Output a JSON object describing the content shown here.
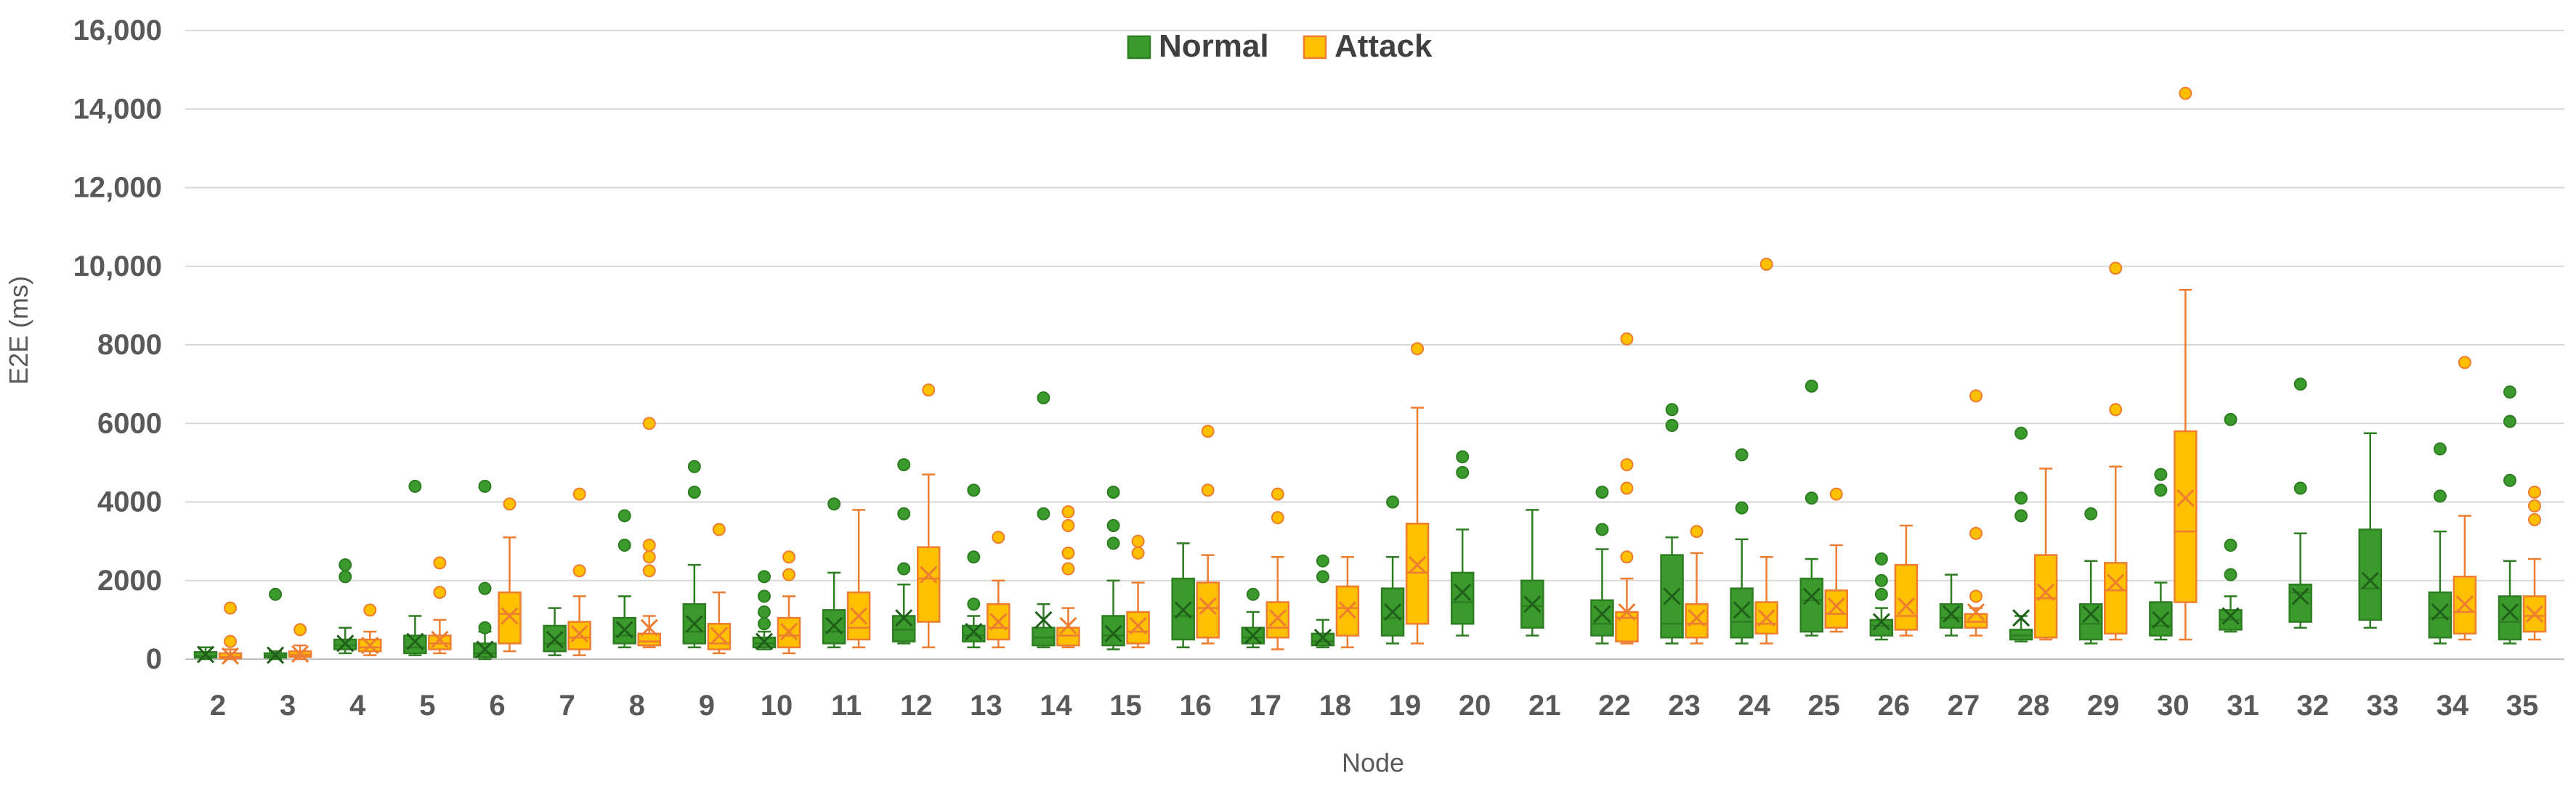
{
  "chart_data": {
    "type": "box",
    "title": "",
    "xlabel": "Node",
    "ylabel": "E2E (ms)",
    "ylim": [
      0,
      16000
    ],
    "yticks": [
      0,
      2000,
      4000,
      6000,
      8000,
      10000,
      12000,
      14000,
      16000
    ],
    "ytick_labels": [
      "0",
      "2000",
      "4000",
      "6000",
      "8000",
      "10,000",
      "12,000",
      "14,000",
      "16,000"
    ],
    "categories": [
      "2",
      "3",
      "4",
      "5",
      "6",
      "7",
      "8",
      "9",
      "10",
      "11",
      "12",
      "13",
      "14",
      "15",
      "16",
      "17",
      "18",
      "19",
      "20",
      "21",
      "22",
      "23",
      "24",
      "25",
      "26",
      "27",
      "28",
      "29",
      "30",
      "31",
      "32",
      "33",
      "34",
      "35"
    ],
    "grid": true,
    "legend_position": "top-center",
    "series": [
      {
        "name": "Normal",
        "color": "#3a9b2c",
        "edge_color": "#2e7d22",
        "boxes": [
          {
            "node": "2",
            "min": 0,
            "q1": 40,
            "median": 80,
            "q3": 180,
            "max": 300,
            "mean": 120,
            "outliers": []
          },
          {
            "node": "3",
            "min": 0,
            "q1": 40,
            "median": 90,
            "q3": 150,
            "max": 200,
            "mean": 100,
            "outliers": [
              1650
            ]
          },
          {
            "node": "4",
            "min": 150,
            "q1": 250,
            "median": 350,
            "q3": 500,
            "max": 800,
            "mean": 400,
            "outliers": [
              2100,
              2400
            ]
          },
          {
            "node": "5",
            "min": 100,
            "q1": 150,
            "median": 300,
            "q3": 600,
            "max": 1100,
            "mean": 450,
            "outliers": [
              4400
            ]
          },
          {
            "node": "6",
            "min": 0,
            "q1": 50,
            "median": 150,
            "q3": 400,
            "max": 700,
            "mean": 250,
            "outliers": [
              800,
              1800,
              4400
            ]
          },
          {
            "node": "7",
            "min": 100,
            "q1": 200,
            "median": 400,
            "q3": 850,
            "max": 1300,
            "mean": 500,
            "outliers": []
          },
          {
            "node": "8",
            "min": 300,
            "q1": 400,
            "median": 600,
            "q3": 1050,
            "max": 1600,
            "mean": 750,
            "outliers": [
              2900,
              3650
            ]
          },
          {
            "node": "9",
            "min": 300,
            "q1": 400,
            "median": 700,
            "q3": 1400,
            "max": 2400,
            "mean": 900,
            "outliers": [
              4250,
              4900
            ]
          },
          {
            "node": "10",
            "min": 250,
            "q1": 300,
            "median": 400,
            "q3": 550,
            "max": 700,
            "mean": 450,
            "outliers": [
              900,
              1200,
              1600,
              2100
            ]
          },
          {
            "node": "11",
            "min": 300,
            "q1": 400,
            "median": 700,
            "q3": 1250,
            "max": 2200,
            "mean": 850,
            "outliers": [
              3950
            ]
          },
          {
            "node": "12",
            "min": 400,
            "q1": 450,
            "median": 750,
            "q3": 1100,
            "max": 1900,
            "mean": 1050,
            "outliers": [
              2300,
              3700,
              4950
            ]
          },
          {
            "node": "13",
            "min": 300,
            "q1": 450,
            "median": 600,
            "q3": 850,
            "max": 1100,
            "mean": 700,
            "outliers": [
              1400,
              2600,
              4300
            ]
          },
          {
            "node": "14",
            "min": 300,
            "q1": 350,
            "median": 550,
            "q3": 800,
            "max": 1400,
            "mean": 1000,
            "outliers": [
              3700,
              6650
            ]
          },
          {
            "node": "15",
            "min": 250,
            "q1": 350,
            "median": 600,
            "q3": 1100,
            "max": 2000,
            "mean": 650,
            "outliers": [
              2950,
              3400,
              4250
            ]
          },
          {
            "node": "16",
            "min": 300,
            "q1": 500,
            "median": 1100,
            "q3": 2050,
            "max": 2950,
            "mean": 1250,
            "outliers": []
          },
          {
            "node": "17",
            "min": 300,
            "q1": 400,
            "median": 550,
            "q3": 800,
            "max": 1200,
            "mean": 600,
            "outliers": [
              1650
            ]
          },
          {
            "node": "18",
            "min": 300,
            "q1": 350,
            "median": 450,
            "q3": 650,
            "max": 1000,
            "mean": 550,
            "outliers": [
              2100,
              2500
            ]
          },
          {
            "node": "19",
            "min": 400,
            "q1": 600,
            "median": 1050,
            "q3": 1800,
            "max": 2600,
            "mean": 1200,
            "outliers": [
              4000
            ]
          },
          {
            "node": "20",
            "min": 600,
            "q1": 900,
            "median": 1450,
            "q3": 2200,
            "max": 3300,
            "mean": 1700,
            "outliers": [
              4750,
              5150
            ]
          },
          {
            "node": "21",
            "min": 600,
            "q1": 800,
            "median": 1350,
            "q3": 2000,
            "max": 3800,
            "mean": 1400,
            "outliers": []
          },
          {
            "node": "22",
            "min": 400,
            "q1": 600,
            "median": 900,
            "q3": 1500,
            "max": 2800,
            "mean": 1150,
            "outliers": [
              3300,
              4250
            ]
          },
          {
            "node": "23",
            "min": 400,
            "q1": 550,
            "median": 900,
            "q3": 2650,
            "max": 3100,
            "mean": 1600,
            "outliers": [
              5950,
              6350
            ]
          },
          {
            "node": "24",
            "min": 400,
            "q1": 550,
            "median": 950,
            "q3": 1800,
            "max": 3050,
            "mean": 1250,
            "outliers": [
              3850,
              5200
            ]
          },
          {
            "node": "25",
            "min": 600,
            "q1": 700,
            "median": 1500,
            "q3": 2050,
            "max": 2550,
            "mean": 1600,
            "outliers": [
              4100,
              6950
            ]
          },
          {
            "node": "26",
            "min": 500,
            "q1": 600,
            "median": 850,
            "q3": 1000,
            "max": 1300,
            "mean": 950,
            "outliers": [
              1650,
              2000,
              2550
            ]
          },
          {
            "node": "27",
            "min": 600,
            "q1": 800,
            "median": 1050,
            "q3": 1400,
            "max": 2150,
            "mean": 1150,
            "outliers": []
          },
          {
            "node": "28",
            "min": 450,
            "q1": 500,
            "median": 600,
            "q3": 750,
            "max": 1100,
            "mean": 1050,
            "outliers": [
              3650,
              4100,
              5750
            ]
          },
          {
            "node": "29",
            "min": 400,
            "q1": 500,
            "median": 900,
            "q3": 1400,
            "max": 2500,
            "mean": 1150,
            "outliers": [
              3700
            ]
          },
          {
            "node": "30",
            "min": 500,
            "q1": 600,
            "median": 850,
            "q3": 1450,
            "max": 1950,
            "mean": 1000,
            "outliers": [
              4300,
              4700
            ]
          },
          {
            "node": "31",
            "min": 700,
            "q1": 750,
            "median": 1000,
            "q3": 1250,
            "max": 1600,
            "mean": 1100,
            "outliers": [
              2150,
              2900,
              6100
            ]
          },
          {
            "node": "32",
            "min": 800,
            "q1": 950,
            "median": 1700,
            "q3": 1900,
            "max": 3200,
            "mean": 1600,
            "outliers": [
              4350,
              7000
            ]
          },
          {
            "node": "33",
            "min": 800,
            "q1": 1000,
            "median": 1800,
            "q3": 3300,
            "max": 5750,
            "mean": 2000,
            "outliers": []
          },
          {
            "node": "34",
            "min": 400,
            "q1": 550,
            "median": 1050,
            "q3": 1700,
            "max": 3250,
            "mean": 1200,
            "outliers": [
              4150,
              5350
            ]
          },
          {
            "node": "35",
            "min": 400,
            "q1": 500,
            "median": 950,
            "q3": 1600,
            "max": 2500,
            "mean": 1200,
            "outliers": [
              4550,
              6050,
              6800
            ]
          }
        ]
      },
      {
        "name": "Attack",
        "color": "#ffc000",
        "edge_color": "#ed7d31",
        "boxes": [
          {
            "node": "2",
            "min": 0,
            "q1": 20,
            "median": 60,
            "q3": 150,
            "max": 250,
            "mean": 80,
            "outliers": [
              450,
              1300
            ]
          },
          {
            "node": "3",
            "min": 0,
            "q1": 60,
            "median": 110,
            "q3": 200,
            "max": 350,
            "mean": 130,
            "outliers": [
              750
            ]
          },
          {
            "node": "4",
            "min": 100,
            "q1": 200,
            "median": 300,
            "q3": 500,
            "max": 700,
            "mean": 350,
            "outliers": [
              1250
            ]
          },
          {
            "node": "5",
            "min": 150,
            "q1": 250,
            "median": 400,
            "q3": 600,
            "max": 1000,
            "mean": 500,
            "outliers": [
              1700,
              2450
            ]
          },
          {
            "node": "6",
            "min": 200,
            "q1": 400,
            "median": 1150,
            "q3": 1700,
            "max": 3100,
            "mean": 1100,
            "outliers": [
              3950
            ]
          },
          {
            "node": "7",
            "min": 100,
            "q1": 250,
            "median": 550,
            "q3": 950,
            "max": 1600,
            "mean": 650,
            "outliers": [
              2250,
              4200
            ]
          },
          {
            "node": "8",
            "min": 300,
            "q1": 350,
            "median": 450,
            "q3": 650,
            "max": 1100,
            "mean": 800,
            "outliers": [
              2250,
              2600,
              2900,
              6000
            ]
          },
          {
            "node": "9",
            "min": 150,
            "q1": 250,
            "median": 400,
            "q3": 900,
            "max": 1700,
            "mean": 600,
            "outliers": [
              3300
            ]
          },
          {
            "node": "10",
            "min": 150,
            "q1": 300,
            "median": 600,
            "q3": 1050,
            "max": 1600,
            "mean": 700,
            "outliers": [
              2150,
              2600
            ]
          },
          {
            "node": "11",
            "min": 300,
            "q1": 500,
            "median": 800,
            "q3": 1700,
            "max": 3800,
            "mean": 1100,
            "outliers": []
          },
          {
            "node": "12",
            "min": 300,
            "q1": 950,
            "median": 2050,
            "q3": 2850,
            "max": 4700,
            "mean": 2150,
            "outliers": [
              6850
            ]
          },
          {
            "node": "13",
            "min": 300,
            "q1": 500,
            "median": 800,
            "q3": 1400,
            "max": 2000,
            "mean": 950,
            "outliers": [
              3100
            ]
          },
          {
            "node": "14",
            "min": 300,
            "q1": 350,
            "median": 600,
            "q3": 800,
            "max": 1300,
            "mean": 850,
            "outliers": [
              2300,
              2700,
              3400,
              3750
            ]
          },
          {
            "node": "15",
            "min": 300,
            "q1": 400,
            "median": 700,
            "q3": 1200,
            "max": 1950,
            "mean": 850,
            "outliers": [
              2700,
              3000
            ]
          },
          {
            "node": "16",
            "min": 400,
            "q1": 550,
            "median": 1300,
            "q3": 1950,
            "max": 2650,
            "mean": 1350,
            "outliers": [
              4300,
              5800
            ]
          },
          {
            "node": "17",
            "min": 250,
            "q1": 550,
            "median": 800,
            "q3": 1450,
            "max": 2600,
            "mean": 1050,
            "outliers": [
              3600,
              4200
            ]
          },
          {
            "node": "18",
            "min": 300,
            "q1": 600,
            "median": 1300,
            "q3": 1850,
            "max": 2600,
            "mean": 1250,
            "outliers": []
          },
          {
            "node": "19",
            "min": 400,
            "q1": 900,
            "median": 2200,
            "q3": 3450,
            "max": 6400,
            "mean": 2400,
            "outliers": [
              7900
            ]
          },
          {
            "node": "22",
            "min": 400,
            "q1": 450,
            "median": 1050,
            "q3": 1200,
            "max": 2050,
            "mean": 1200,
            "outliers": [
              2600,
              4350,
              4950,
              8150
            ]
          },
          {
            "node": "23",
            "min": 400,
            "q1": 550,
            "median": 900,
            "q3": 1400,
            "max": 2700,
            "mean": 1050,
            "outliers": [
              3250
            ]
          },
          {
            "node": "24",
            "min": 400,
            "q1": 650,
            "median": 900,
            "q3": 1450,
            "max": 2600,
            "mean": 1050,
            "outliers": [
              10050
            ]
          },
          {
            "node": "25",
            "min": 700,
            "q1": 800,
            "median": 1150,
            "q3": 1750,
            "max": 2900,
            "mean": 1350,
            "outliers": [
              4200
            ]
          },
          {
            "node": "26",
            "min": 600,
            "q1": 750,
            "median": 1100,
            "q3": 2400,
            "max": 3400,
            "mean": 1350,
            "outliers": []
          },
          {
            "node": "27",
            "min": 600,
            "q1": 800,
            "median": 950,
            "q3": 1150,
            "max": 1300,
            "mean": 1200,
            "outliers": [
              1600,
              3200,
              6700
            ]
          },
          {
            "node": "28",
            "min": 500,
            "q1": 550,
            "median": 1550,
            "q3": 2650,
            "max": 4850,
            "mean": 1700,
            "outliers": []
          },
          {
            "node": "29",
            "min": 500,
            "q1": 650,
            "median": 1750,
            "q3": 2450,
            "max": 4900,
            "mean": 1950,
            "outliers": [
              6350,
              9950
            ]
          },
          {
            "node": "30",
            "min": 500,
            "q1": 1450,
            "median": 3250,
            "q3": 5800,
            "max": 9400,
            "mean": 4100,
            "outliers": [
              14400
            ]
          },
          {
            "node": "34",
            "min": 500,
            "q1": 650,
            "median": 1200,
            "q3": 2100,
            "max": 3650,
            "mean": 1400,
            "outliers": [
              7550
            ]
          },
          {
            "node": "35",
            "min": 500,
            "q1": 700,
            "median": 1100,
            "q3": 1600,
            "max": 2550,
            "mean": 1150,
            "outliers": [
              3550,
              3900,
              4250
            ]
          }
        ]
      }
    ]
  }
}
